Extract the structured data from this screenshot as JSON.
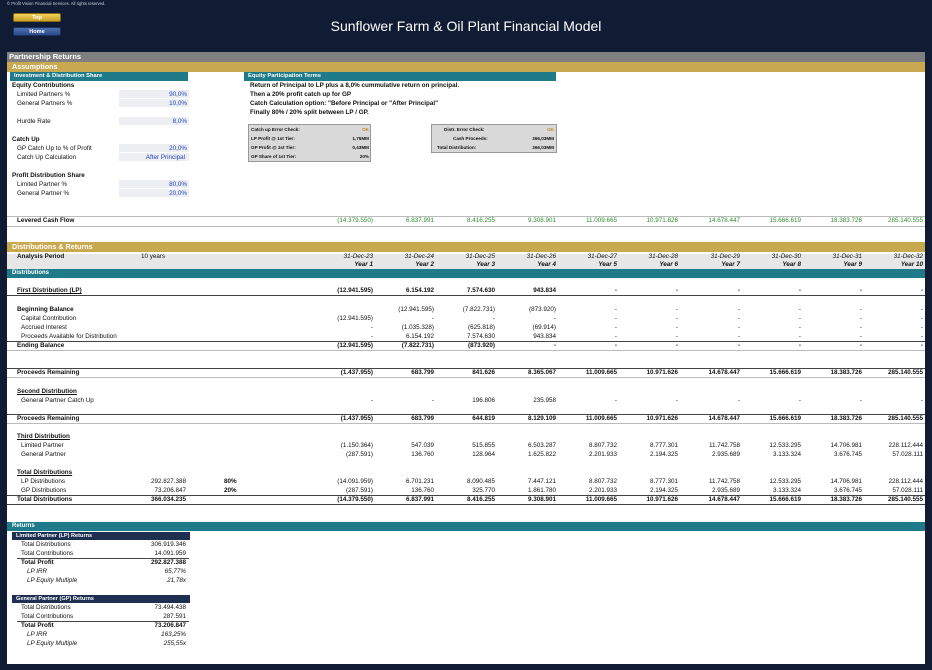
{
  "header": {
    "copyright": "© Profit Vision Financial Services. All rights reserved.",
    "title": "Sunflower Farm & Oil Plant Financial Model",
    "top_label": "Top",
    "home_label": "Home"
  },
  "section_title": "Partnership Returns",
  "assumptions": {
    "title": "Assumptions",
    "inv_header": "Investment & Distribution Share",
    "equity_contrib": "Equity Contributions",
    "lp_pct_label": "Limited Partners %",
    "lp_pct": "90,0%",
    "gp_pct_label": "General Partners %",
    "gp_pct": "10,0%",
    "hurdle_label": "Hurdle Rate",
    "hurdle": "8,0%",
    "catchup": "Catch Up",
    "gp_catchup_label": "GP Catch Up to % of Profit",
    "gp_catchup": "20,0%",
    "catchup_calc_label": "Catch Up Calculation",
    "catchup_calc": "After Principal",
    "pds_title": "Profit Distribution Share",
    "pds_lp_label": "Limited Partner %",
    "pds_lp": "80,0%",
    "pds_gp_label": "General Partner %",
    "pds_gp": "20,0%"
  },
  "terms": {
    "header": "Equity Participation Terms",
    "line1": "Return of Principal to LP plus a 8,0% cummulative return on principal.",
    "line2": "Then a 20% profit catch up for GP",
    "line3": "Catch Calculation option: \"Before Principal or \"After Principal\"",
    "line4": "Finally 80% / 20% split between LP / GP.",
    "box1": {
      "error_label": "Catch up Error Check:",
      "error_value": "OK",
      "lp_label": "LP Profit @ 1st Tier:",
      "lp_value": "1,75MM",
      "gp_label": "GP Profit @ 1st Tier:",
      "gp_value": "0,43MM",
      "share_label": "GP Share of 1st Tier:",
      "share_value": "20%"
    },
    "box2": {
      "error_label": "Distr. Error Check:",
      "error_value": "OK",
      "cash_label": "Cash Proceeds:",
      "cash_value": "366,03MM",
      "total_label": "Total Distribution:",
      "total_value": "366,03MM"
    }
  },
  "levered": {
    "label": "Levered Cash Flow",
    "values": [
      "(14.379.550)",
      "6.837.991",
      "8.416.255",
      "9.308.901",
      "11.009.665",
      "10.971.626",
      "14.678.447",
      "15.666.619",
      "18.383.726",
      "285.140.555"
    ]
  },
  "dist": {
    "title": "Distributions & Returns",
    "analysis_label": "Analysis Period",
    "analysis_value": "10 years",
    "dates": [
      "31-Dec-23",
      "31-Dec-24",
      "31-Dec-25",
      "31-Dec-26",
      "31-Dec-27",
      "31-Dec-28",
      "31-Dec-29",
      "31-Dec-30",
      "31-Dec-31",
      "31-Dec-32"
    ],
    "years": [
      "Year 1",
      "Year 2",
      "Year 3",
      "Year 4",
      "Year 5",
      "Year 6",
      "Year 7",
      "Year 8",
      "Year 9",
      "Year 10"
    ],
    "bar_label": "Distributions"
  },
  "rows": {
    "first_dist": {
      "label": "First Distribution (LP)",
      "values": [
        "(12.941.595)",
        "6.154.192",
        "7.574.630",
        "943.834",
        "-",
        "-",
        "-",
        "-",
        "-",
        "-"
      ]
    },
    "beg_bal": {
      "label": "Beginning Balance",
      "values": [
        "",
        "(12.941.595)",
        "(7.822.731)",
        "(873.920)",
        "-",
        "-",
        "-",
        "-",
        "-",
        "-"
      ]
    },
    "cap_contrib": {
      "label": "Capital Contribution",
      "values": [
        "(12.941.595)",
        "-",
        "-",
        "-",
        "-",
        "-",
        "-",
        "-",
        "-",
        "-"
      ]
    },
    "accrued": {
      "label": "Accrued Interest",
      "values": [
        "-",
        "(1.035.328)",
        "(625.818)",
        "(69.914)",
        "-",
        "-",
        "-",
        "-",
        "-",
        "-"
      ]
    },
    "proceeds_avail": {
      "label": "Proceeds Available for Distribution",
      "values": [
        "-",
        "6.154.192",
        "7.574.630",
        "943.834",
        "-",
        "-",
        "-",
        "-",
        "-",
        "-"
      ]
    },
    "end_bal": {
      "label": "Ending Balance",
      "values": [
        "(12.941.595)",
        "(7.822.731)",
        "(873.920)",
        "-",
        "-",
        "-",
        "-",
        "-",
        "-",
        "-"
      ]
    },
    "proc_rem1": {
      "label": "Proceeds Remaining",
      "values": [
        "(1.437.955)",
        "683.799",
        "841.626",
        "8.365.067",
        "11.009.665",
        "10.971.626",
        "14.678.447",
        "15.666.619",
        "18.383.726",
        "285.140.555"
      ]
    },
    "second_dist": {
      "label": "Second Distribution"
    },
    "gp_catchup": {
      "label": "General Partner Catch Up",
      "values": [
        "-",
        "-",
        "196.806",
        "235.958",
        "-",
        "-",
        "-",
        "-",
        "-",
        "-"
      ]
    },
    "proc_rem2": {
      "label": "Proceeds Remaining",
      "values": [
        "(1.437.955)",
        "683.799",
        "644.819",
        "8.129.109",
        "11.009.665",
        "10.971.626",
        "14.678.447",
        "15.666.619",
        "18.383.726",
        "285.140.555"
      ]
    },
    "third_dist": {
      "label": "Third Distribution"
    },
    "third_lp": {
      "label": "Limited Partner",
      "values": [
        "(1.150.364)",
        "547.039",
        "515.855",
        "6.503.287",
        "8.807.732",
        "8.777.301",
        "11.742.758",
        "12.533.295",
        "14.706.981",
        "228.112.444"
      ]
    },
    "third_gp": {
      "label": "General Partner",
      "values": [
        "(287.591)",
        "136.760",
        "128.964",
        "1.625.822",
        "2.201.933",
        "2.194.325",
        "2.935.689",
        "3.133.324",
        "3.676.745",
        "57.028.111"
      ]
    },
    "total_dist": {
      "label": "Total Distributions"
    },
    "lp_dist": {
      "label": "LP Distributions",
      "total": "292.827.388",
      "share": "80%",
      "values": [
        "(14.091.959)",
        "6.701.231",
        "8.090.485",
        "7.447.121",
        "8.807.732",
        "8.777.301",
        "11.742.758",
        "12.533.295",
        "14.706.981",
        "228.112.444"
      ]
    },
    "gp_dist": {
      "label": "GP Distributions",
      "total": "73.206.847",
      "share": "20%",
      "values": [
        "(287.591)",
        "136.760",
        "325.770",
        "1.861.780",
        "2.201.933",
        "2.194.325",
        "2.935.689",
        "3.133.324",
        "3.676.745",
        "57.028.111"
      ]
    },
    "tot_dist": {
      "label": "Total Distributions",
      "total": "366.034.235",
      "values": [
        "(14.379.550)",
        "6.837.991",
        "8.416.255",
        "9.308.901",
        "11.009.665",
        "10.971.626",
        "14.678.447",
        "15.666.619",
        "18.383.726",
        "285.140.555"
      ]
    }
  },
  "returns": {
    "title": "Returns",
    "lp": {
      "header": "Limited Partner (LP) Returns",
      "total_dist_label": "Total Distributions",
      "total_dist": "306.919.346",
      "total_contrib_label": "Total Contributions",
      "total_contrib": "14.091.959",
      "total_profit_label": "Total Profit",
      "total_profit": "292.827.388",
      "irr_label": "LP IRR",
      "irr": "65,77%",
      "mult_label": "LP Equity Multiple",
      "mult": "21,78x"
    },
    "gp": {
      "header": "General Partner (GP) Returns",
      "total_dist_label": "Total Distributions",
      "total_dist": "73.494.438",
      "total_contrib_label": "Total Contributions",
      "total_contrib": "287.591",
      "total_profit_label": "Total Profit",
      "total_profit": "73.206.847",
      "irr_label": "LP IRR",
      "irr": "163,25%",
      "mult_label": "LP Equity Multiple",
      "mult": "255,55x"
    }
  }
}
